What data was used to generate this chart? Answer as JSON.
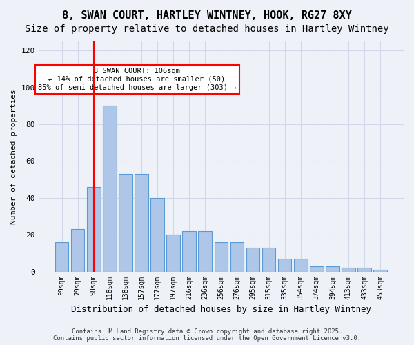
{
  "title_line1": "8, SWAN COURT, HARTLEY WINTNEY, HOOK, RG27 8XY",
  "title_line2": "Size of property relative to detached houses in Hartley Wintney",
  "xlabel": "Distribution of detached houses by size in Hartley Wintney",
  "ylabel": "Number of detached properties",
  "categories": [
    "59sqm",
    "79sqm",
    "98sqm",
    "118sqm",
    "138sqm",
    "157sqm",
    "177sqm",
    "197sqm",
    "216sqm",
    "236sqm",
    "256sqm",
    "276sqm",
    "295sqm",
    "315sqm",
    "335sqm",
    "354sqm",
    "374sqm",
    "394sqm",
    "413sqm",
    "433sqm",
    "453sqm"
  ],
  "bar_values": [
    16,
    23,
    46,
    90,
    53,
    53,
    40,
    20,
    22,
    22,
    16,
    16,
    13,
    13,
    7,
    7,
    3,
    3,
    2,
    2,
    1
  ],
  "bar_color": "#aec6e8",
  "bar_edge_color": "#5b9bd5",
  "grid_color": "#d0d8e8",
  "bg_color": "#eef2f8",
  "vline_x": 2.0,
  "vline_color": "red",
  "annotation_text": "8 SWAN COURT: 106sqm\n← 14% of detached houses are smaller (50)\n85% of semi-detached houses are larger (303) →",
  "annotation_box_color": "white",
  "annotation_box_edge": "red",
  "ylim": [
    0,
    125
  ],
  "yticks": [
    0,
    20,
    40,
    60,
    80,
    100,
    120
  ],
  "footer": "Contains HM Land Registry data © Crown copyright and database right 2025.\nContains public sector information licensed under the Open Government Licence v3.0.",
  "title_fontsize": 11,
  "subtitle_fontsize": 10
}
